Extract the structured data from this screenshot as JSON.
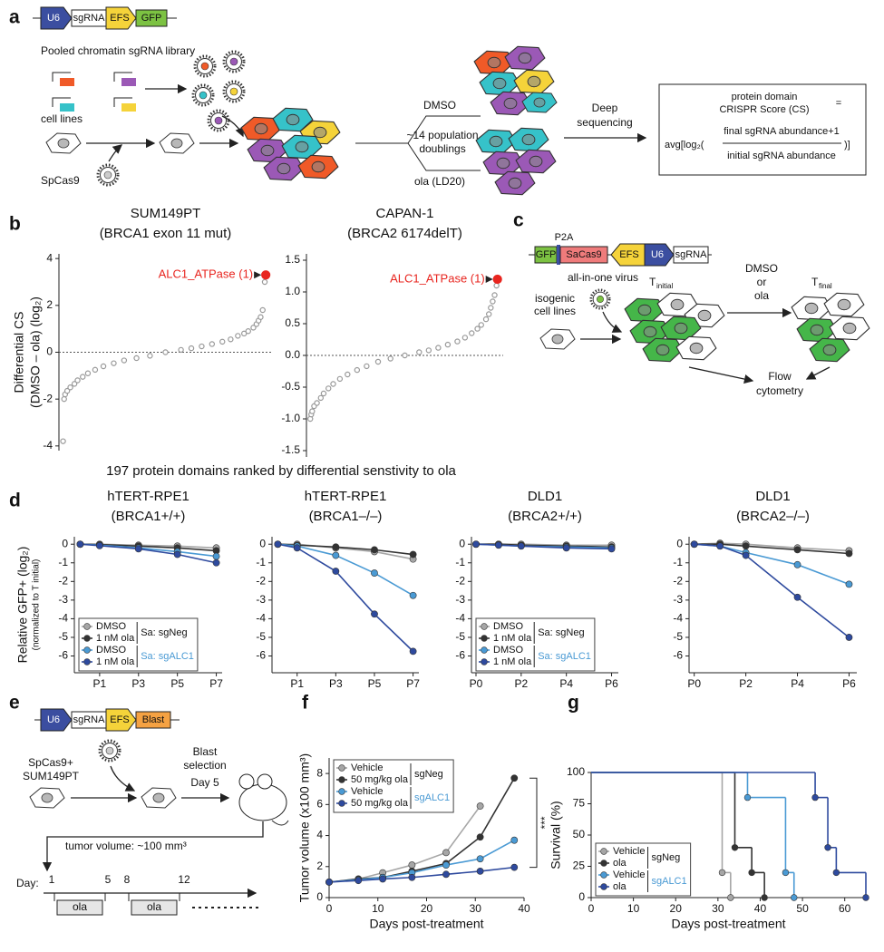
{
  "panel_labels": [
    "a",
    "b",
    "c",
    "d",
    "e",
    "f",
    "g"
  ],
  "diagram_a": {
    "vector": [
      "U6",
      "sgRNA",
      "EFS",
      "GFP"
    ],
    "library": "Pooled chromatin sgRNA library",
    "cell_lines": "cell lines",
    "cas9": "SpCas9",
    "treatment_top": "DMSO",
    "doublings": [
      "~14 population",
      "doublings"
    ],
    "treatment_bottom": "ola (LD20)",
    "sequencing": [
      "Deep",
      "sequencing"
    ],
    "formula": [
      "protein domain",
      "CRISPR Score (CS)",
      "=",
      "avg[log₂(",
      "final sgRNA abundance+1",
      "initial sgRNA abundance",
      ")]"
    ]
  },
  "panel_b_xlabel": "197 protein domains ranked by differential senstivity to ola",
  "diagram_c": {
    "p2a": "P2A",
    "vector": [
      "GFP",
      "SaCas9",
      "EFS",
      "U6",
      "sgRNA"
    ],
    "virus": "all-in-one virus",
    "cells": [
      "isogenic",
      "cell lines"
    ],
    "t_initial": [
      "T",
      "initial"
    ],
    "treatment": [
      "DMSO",
      "or",
      "ola"
    ],
    "t_final": [
      "T",
      "final"
    ],
    "readout": [
      "Flow",
      "cytometry"
    ]
  },
  "diagram_e": {
    "vector": [
      "U6",
      "sgRNA",
      "EFS",
      "Blast"
    ],
    "cells": [
      "SpCas9+",
      "SUM149PT"
    ],
    "selection": [
      "Blast",
      "selection",
      "Day 5"
    ],
    "tumor": "tumor volume: ~100 mm³",
    "day": "Day:",
    "days": [
      1,
      5,
      8,
      12
    ],
    "dosing": [
      "ola",
      "ola"
    ]
  },
  "chart_data": [
    {
      "type": "scatter",
      "title": "SUM149PT",
      "subtitle": "(BRCA1 exon 11 mut)",
      "y_label": [
        "Differential CS",
        "(DMSO – ola) (log₂)"
      ],
      "x": [
        1,
        2,
        3,
        5,
        8,
        12,
        15,
        20,
        25,
        32,
        40,
        50,
        60,
        72,
        85,
        100,
        115,
        125,
        135,
        145,
        155,
        163,
        170,
        176,
        180,
        185,
        188,
        190,
        192,
        194,
        196,
        197
      ],
      "values": [
        -3.8,
        -2.0,
        -1.8,
        -1.65,
        -1.5,
        -1.35,
        -1.2,
        -1.05,
        -0.9,
        -0.75,
        -0.6,
        -0.47,
        -0.35,
        -0.25,
        -0.15,
        0,
        0.1,
        0.17,
        0.25,
        0.35,
        0.45,
        0.55,
        0.7,
        0.8,
        0.9,
        1.05,
        1.2,
        1.35,
        1.5,
        1.8,
        3.0,
        3.3
      ],
      "color": "#999999",
      "highlight_color": "#e8251f",
      "annotation": "ALC1_ATPase (1)",
      "xlim": [
        -3,
        203
      ],
      "ylim": [
        -4.2,
        4.2
      ],
      "yticks": [
        -4,
        -2,
        0,
        2,
        4
      ],
      "zero_line": true
    },
    {
      "type": "scatter",
      "title": "CAPAN-1",
      "subtitle": "(BRCA2 6174delT)",
      "x": [
        1,
        2,
        3,
        5,
        8,
        12,
        15,
        20,
        25,
        32,
        40,
        50,
        60,
        72,
        85,
        100,
        115,
        125,
        135,
        145,
        155,
        163,
        170,
        176,
        180,
        185,
        188,
        190,
        192,
        194,
        196,
        197
      ],
      "values": [
        -1.0,
        -0.93,
        -0.88,
        -0.8,
        -0.75,
        -0.67,
        -0.6,
        -0.52,
        -0.45,
        -0.37,
        -0.3,
        -0.23,
        -0.17,
        -0.1,
        -0.05,
        0,
        0.05,
        0.08,
        0.12,
        0.17,
        0.22,
        0.28,
        0.35,
        0.42,
        0.48,
        0.57,
        0.65,
        0.75,
        0.85,
        0.95,
        1.1,
        1.2
      ],
      "color": "#999999",
      "highlight_color": "#e8251f",
      "annotation": "ALC1_ATPase (1)",
      "xlim": [
        -3,
        203
      ],
      "ylim": [
        -1.6,
        1.6
      ],
      "yticks": [
        -1.5,
        {
          "value": -1,
          "label": "-1.0"
        },
        -0.5,
        {
          "value": 0,
          "label": "0.0"
        },
        0.5,
        {
          "value": 1,
          "label": "1.0"
        },
        1.5
      ],
      "zero_line": true
    },
    {
      "type": "line",
      "title": "hTERT-RPE1",
      "subtitle": "(BRCA1+/+)",
      "y_label": [
        "Relative GFP+ (log₂)",
        "(normalized to T initial)"
      ],
      "x": [
        0,
        1,
        3,
        5,
        7
      ],
      "xlim": [
        -0.3,
        7.3
      ],
      "xticks": [
        {
          "value": 1,
          "label": "P1"
        },
        {
          "value": 3,
          "label": "P3"
        },
        {
          "value": 5,
          "label": "P5"
        },
        {
          "value": 7,
          "label": "P7"
        }
      ],
      "ylim": [
        -6.9,
        0.4
      ],
      "yticks": [
        0,
        -1,
        -2,
        -3,
        -4,
        -5,
        -6
      ],
      "legend": "lower left",
      "legend_groups": [
        "Sa: sgNeg",
        "Sa: sgALC1"
      ],
      "series": [
        {
          "name": "DMSO",
          "color": "#a6a6a6",
          "values": [
            0,
            0,
            -0.05,
            -0.1,
            -0.2
          ]
        },
        {
          "name": "1 nM ola",
          "color": "#333333",
          "values": [
            0,
            -0.02,
            -0.1,
            -0.2,
            -0.35
          ]
        },
        {
          "name": "DMSO",
          "color": "#4a9ad4",
          "values": [
            0,
            -0.05,
            -0.2,
            -0.4,
            -0.65
          ]
        },
        {
          "name": "1 nM ola",
          "color": "#2e4a9e",
          "values": [
            0,
            -0.08,
            -0.25,
            -0.55,
            -1.0
          ]
        }
      ]
    },
    {
      "type": "line",
      "title": "hTERT-RPE1",
      "subtitle": "(BRCA1–/–)",
      "x": [
        0,
        1,
        3,
        5,
        7
      ],
      "xlim": [
        -0.3,
        7.3
      ],
      "xticks": [
        {
          "value": 1,
          "label": "P1"
        },
        {
          "value": 3,
          "label": "P3"
        },
        {
          "value": 5,
          "label": "P5"
        },
        {
          "value": 7,
          "label": "P7"
        }
      ],
      "ylim": [
        -6.9,
        0.4
      ],
      "yticks": [
        0,
        -1,
        -2,
        -3,
        -4,
        -5,
        -6
      ],
      "series": [
        {
          "color": "#a6a6a6",
          "values": [
            0,
            0,
            -0.2,
            -0.4,
            -0.8
          ]
        },
        {
          "color": "#333333",
          "values": [
            0,
            -0.05,
            -0.15,
            -0.3,
            -0.55
          ]
        },
        {
          "color": "#4a9ad4",
          "values": [
            0,
            -0.1,
            -0.6,
            -1.55,
            -2.75
          ]
        },
        {
          "color": "#2e4a9e",
          "values": [
            0,
            -0.2,
            -1.45,
            -3.75,
            -5.75
          ]
        }
      ]
    },
    {
      "type": "line",
      "title": "DLD1",
      "subtitle": "(BRCA2+/+)",
      "x": [
        0,
        1,
        2,
        4,
        6
      ],
      "xlim": [
        -0.2,
        6.3
      ],
      "xticks": [
        {
          "value": 0,
          "label": "P0"
        },
        {
          "value": 2,
          "label": "P2"
        },
        {
          "value": 4,
          "label": "P4"
        },
        {
          "value": 6,
          "label": "P6"
        }
      ],
      "ylim": [
        -6.9,
        0.4
      ],
      "yticks": [
        0,
        -1,
        -2,
        -3,
        -4,
        -5,
        -6
      ],
      "legend": "lower left",
      "legend_groups": [
        "Sa: sgNeg",
        "Sa: sgALC1"
      ],
      "series": [
        {
          "name": "DMSO",
          "color": "#a6a6a6",
          "values": [
            0,
            0,
            0,
            -0.05,
            -0.05
          ]
        },
        {
          "name": "1 nM ola",
          "color": "#333333",
          "values": [
            0,
            0,
            -0.05,
            -0.1,
            -0.15
          ]
        },
        {
          "name": "DMSO",
          "color": "#4a9ad4",
          "values": [
            0,
            -0.05,
            -0.1,
            -0.15,
            -0.2
          ]
        },
        {
          "name": "1 nM ola",
          "color": "#2e4a9e",
          "values": [
            0,
            -0.05,
            -0.1,
            -0.2,
            -0.25
          ]
        }
      ]
    },
    {
      "type": "line",
      "title": "DLD1",
      "subtitle": "(BRCA2–/–)",
      "x": [
        0,
        1,
        2,
        4,
        6
      ],
      "xlim": [
        -0.2,
        6.3
      ],
      "xticks": [
        {
          "value": 0,
          "label": "P0"
        },
        {
          "value": 2,
          "label": "P2"
        },
        {
          "value": 4,
          "label": "P4"
        },
        {
          "value": 6,
          "label": "P6"
        }
      ],
      "ylim": [
        -6.9,
        0.4
      ],
      "yticks": [
        0,
        -1,
        -2,
        -3,
        -4,
        -5,
        -6
      ],
      "series": [
        {
          "color": "#a6a6a6",
          "values": [
            0,
            0.05,
            0,
            -0.2,
            -0.35
          ]
        },
        {
          "color": "#333333",
          "values": [
            0,
            0,
            -0.1,
            -0.3,
            -0.5
          ]
        },
        {
          "color": "#4a9ad4",
          "values": [
            0,
            -0.1,
            -0.45,
            -1.1,
            -2.15
          ]
        },
        {
          "color": "#2e4a9e",
          "values": [
            0,
            -0.1,
            -0.6,
            -2.85,
            -5.0
          ]
        }
      ]
    },
    {
      "type": "line",
      "y_label": "Tumor volume (x100 mm³)",
      "x_label": "Days post-treatment",
      "x": [
        0,
        6,
        11,
        17,
        24,
        31,
        38
      ],
      "xlim": [
        0,
        40
      ],
      "xticks": [
        0,
        10,
        20,
        30,
        40
      ],
      "ylim": [
        0,
        9
      ],
      "yticks": [
        0,
        2,
        4,
        6,
        8
      ],
      "legend": "upper left",
      "legend_groups": [
        "sgNeg",
        "sgALC1"
      ],
      "annotation": "***",
      "series": [
        {
          "name": "Vehicle",
          "color": "#a6a6a6",
          "values": [
            1,
            1.2,
            1.6,
            2.1,
            2.9,
            5.9,
            null
          ]
        },
        {
          "name": "50 mg/kg ola",
          "color": "#333333",
          "values": [
            1,
            1.2,
            1.3,
            1.7,
            2.2,
            3.9,
            7.7
          ]
        },
        {
          "name": "Vehicle",
          "color": "#4a9ad4",
          "values": [
            1,
            1.15,
            1.3,
            1.6,
            2.1,
            2.5,
            3.7
          ]
        },
        {
          "name": "50 mg/kg ola",
          "color": "#2e4a9e",
          "values": [
            1,
            1.1,
            1.2,
            1.3,
            1.5,
            1.7,
            1.95
          ]
        }
      ]
    },
    {
      "type": "step",
      "y_label": "Survival (%)",
      "x_label": "Days post-treatment",
      "xlim": [
        0,
        65
      ],
      "xticks": [
        0,
        10,
        20,
        30,
        40,
        50,
        60
      ],
      "ylim": [
        0,
        100
      ],
      "yticks": [
        0,
        25,
        50,
        75,
        100
      ],
      "legend": "lower left",
      "legend_groups": [
        "sgNeg",
        "sgALC1"
      ],
      "series": [
        {
          "name": "Vehicle",
          "color": "#a6a6a6",
          "x": [
            0,
            31,
            33
          ],
          "values": [
            100,
            20,
            0
          ]
        },
        {
          "name": "ola",
          "color": "#333333",
          "x": [
            0,
            34,
            38,
            41
          ],
          "values": [
            100,
            40,
            20,
            0
          ]
        },
        {
          "name": "Vehicle",
          "color": "#4a9ad4",
          "x": [
            0,
            37,
            46,
            48
          ],
          "values": [
            100,
            80,
            20,
            0
          ]
        },
        {
          "name": "ola",
          "color": "#2e4a9e",
          "x": [
            0,
            53,
            56,
            58,
            65
          ],
          "values": [
            100,
            80,
            40,
            20,
            0
          ]
        }
      ]
    }
  ]
}
